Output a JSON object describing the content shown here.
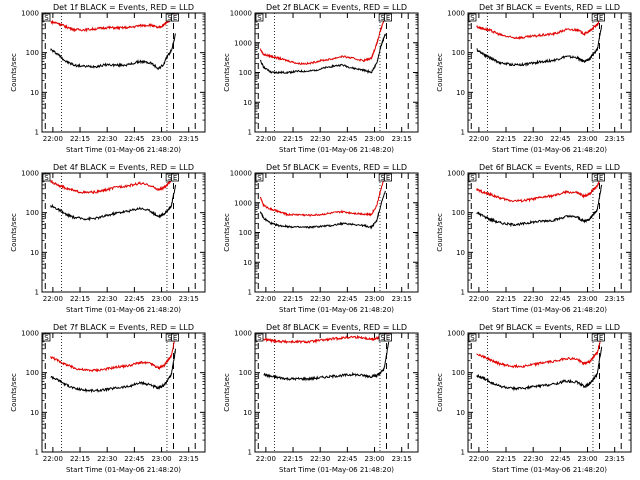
{
  "figure": {
    "legend_text": "BLACK = Events, RED = LLD",
    "xlabel": "Start Time (01-May-06 21:48:20)",
    "ylabel": "Counts/sec",
    "colors": {
      "events": "#000000",
      "lld": "#e00000",
      "axes": "#000000"
    }
  },
  "chart_data": [
    {
      "type": "line",
      "title": "Det 1f BLACK = Events, RED = LLD",
      "xlabel": "Start Time (01-May-06 21:48:20)",
      "ylabel": "Counts/sec",
      "xticks": [
        "22:00",
        "22:15",
        "22:30",
        "22:45",
        "23:00",
        "23:15"
      ],
      "yticks": [
        "1",
        "10",
        "100",
        "1000"
      ],
      "ylim": [
        1,
        1000
      ],
      "yscale": "log",
      "xlim": [
        21.9,
        23.4
      ],
      "x": [
        21.98,
        22.05,
        22.12,
        22.2,
        22.3,
        22.4,
        22.5,
        22.6,
        22.7,
        22.8,
        22.9,
        22.97,
        23.02,
        23.05,
        23.09,
        23.13
      ],
      "series": [
        {
          "name": "Events",
          "color": "#000000",
          "values": [
            120,
            90,
            60,
            48,
            45,
            45,
            50,
            48,
            50,
            60,
            55,
            40,
            50,
            80,
            110,
            300
          ]
        },
        {
          "name": "LLD",
          "color": "#e00000",
          "values": [
            600,
            550,
            450,
            380,
            380,
            400,
            430,
            420,
            430,
            480,
            500,
            420,
            500,
            600,
            700,
            900
          ]
        }
      ],
      "vlines": {
        "dotted": [
          22.08,
          23.05
        ],
        "dashed": [
          21.93,
          23.11,
          23.31
        ]
      },
      "markers": [
        "S",
        "S",
        "E"
      ]
    },
    {
      "type": "line",
      "title": "Det 2f BLACK = Events, RED = LLD",
      "xlabel": "Start Time (01-May-06 21:48:20)",
      "ylabel": "Counts/sec",
      "xticks": [
        "22:00",
        "22:15",
        "22:30",
        "22:45",
        "23:00",
        "23:15"
      ],
      "yticks": [
        "1",
        "10",
        "100",
        "1000",
        "10000"
      ],
      "ylim": [
        1,
        10000
      ],
      "yscale": "log",
      "xlim": [
        21.9,
        23.4
      ],
      "x": [
        21.95,
        21.98,
        22.05,
        22.12,
        22.2,
        22.3,
        22.4,
        22.5,
        22.6,
        22.7,
        22.8,
        22.9,
        22.97,
        23.02,
        23.06,
        23.1
      ],
      "series": [
        {
          "name": "Events",
          "color": "#000000",
          "values": [
            250,
            150,
            100,
            100,
            100,
            110,
            110,
            130,
            160,
            180,
            140,
            120,
            100,
            200,
            800,
            2000
          ]
        },
        {
          "name": "LLD",
          "color": "#e00000",
          "values": [
            600,
            400,
            350,
            300,
            250,
            200,
            200,
            250,
            280,
            350,
            300,
            250,
            300,
            900,
            3000,
            8000
          ]
        }
      ],
      "vlines": {
        "dotted": [
          22.08,
          23.05
        ],
        "dashed": [
          21.93,
          23.11,
          23.31
        ]
      },
      "markers": [
        "S",
        "S",
        "E"
      ]
    },
    {
      "type": "line",
      "title": "Det 3f BLACK = Events, RED = LLD",
      "xlabel": "Start Time (01-May-06 21:48:20)",
      "ylabel": "Counts/sec",
      "xticks": [
        "22:00",
        "22:15",
        "22:30",
        "22:45",
        "23:00",
        "23:15"
      ],
      "yticks": [
        "1",
        "10",
        "100",
        "1000"
      ],
      "ylim": [
        1,
        1000
      ],
      "yscale": "log",
      "xlim": [
        21.9,
        23.4
      ],
      "x": [
        21.98,
        22.05,
        22.12,
        22.2,
        22.3,
        22.4,
        22.5,
        22.6,
        22.7,
        22.8,
        22.9,
        22.97,
        23.02,
        23.05,
        23.09,
        23.13
      ],
      "series": [
        {
          "name": "Events",
          "color": "#000000",
          "values": [
            120,
            90,
            70,
            55,
            50,
            50,
            55,
            60,
            65,
            80,
            75,
            60,
            70,
            90,
            120,
            500
          ]
        },
        {
          "name": "LLD",
          "color": "#e00000",
          "values": [
            450,
            400,
            350,
            280,
            240,
            240,
            260,
            280,
            300,
            380,
            380,
            300,
            350,
            420,
            500,
            900
          ]
        }
      ],
      "vlines": {
        "dotted": [
          22.08,
          23.05
        ],
        "dashed": [
          21.93,
          23.11,
          23.31
        ]
      },
      "markers": [
        "S",
        "S",
        "E"
      ]
    },
    {
      "type": "line",
      "title": "Det 4f BLACK = Events, RED = LLD",
      "xlabel": "Start Time (01-May-06 21:48:20)",
      "ylabel": "Counts/sec",
      "xticks": [
        "22:00",
        "22:15",
        "22:30",
        "22:45",
        "23:00",
        "23:15"
      ],
      "yticks": [
        "1",
        "10",
        "100",
        "1000"
      ],
      "ylim": [
        1,
        1000
      ],
      "yscale": "log",
      "xlim": [
        21.9,
        23.4
      ],
      "x": [
        21.98,
        22.05,
        22.12,
        22.2,
        22.3,
        22.4,
        22.5,
        22.6,
        22.7,
        22.8,
        22.9,
        22.97,
        23.02,
        23.05,
        23.09,
        23.13
      ],
      "series": [
        {
          "name": "Events",
          "color": "#000000",
          "values": [
            150,
            120,
            90,
            75,
            70,
            72,
            85,
            100,
            110,
            130,
            110,
            80,
            90,
            110,
            150,
            500
          ]
        },
        {
          "name": "LLD",
          "color": "#e00000",
          "values": [
            600,
            500,
            420,
            350,
            320,
            330,
            380,
            450,
            480,
            550,
            480,
            380,
            420,
            500,
            650,
            900
          ]
        }
      ],
      "vlines": {
        "dotted": [
          22.08,
          23.05
        ],
        "dashed": [
          21.93,
          23.11,
          23.31
        ]
      },
      "markers": [
        "S",
        "S",
        "E"
      ]
    },
    {
      "type": "line",
      "title": "Det 5f BLACK = Events, RED = LLD",
      "xlabel": "Start Time (01-May-06 21:48:20)",
      "ylabel": "Counts/sec",
      "xticks": [
        "22:00",
        "22:15",
        "22:30",
        "22:45",
        "23:00",
        "23:15"
      ],
      "yticks": [
        "1",
        "10",
        "100",
        "1000",
        "10000"
      ],
      "ylim": [
        1,
        10000
      ],
      "yscale": "log",
      "xlim": [
        21.9,
        23.4
      ],
      "x": [
        21.95,
        21.98,
        22.05,
        22.12,
        22.2,
        22.3,
        22.4,
        22.5,
        22.6,
        22.7,
        22.8,
        22.9,
        22.97,
        23.02,
        23.06,
        23.1
      ],
      "series": [
        {
          "name": "Events",
          "color": "#000000",
          "values": [
            500,
            300,
            200,
            170,
            160,
            150,
            150,
            160,
            170,
            200,
            190,
            170,
            150,
            250,
            900,
            2500
          ]
        },
        {
          "name": "LLD",
          "color": "#e00000",
          "values": [
            1500,
            800,
            600,
            500,
            400,
            400,
            380,
            400,
            450,
            500,
            450,
            420,
            400,
            800,
            3000,
            8000
          ]
        }
      ],
      "vlines": {
        "dotted": [
          22.08,
          23.05
        ],
        "dashed": [
          21.93,
          23.11,
          23.31
        ]
      },
      "markers": [
        "S",
        "S",
        "E"
      ]
    },
    {
      "type": "line",
      "title": "Det 6f BLACK = Events, RED = LLD",
      "xlabel": "Start Time (01-May-06 21:48:20)",
      "ylabel": "Counts/sec",
      "xticks": [
        "22:00",
        "22:15",
        "22:30",
        "22:45",
        "23:00",
        "23:15"
      ],
      "yticks": [
        "1",
        "10",
        "100",
        "1000"
      ],
      "ylim": [
        1,
        1000
      ],
      "yscale": "log",
      "xlim": [
        21.9,
        23.4
      ],
      "x": [
        21.98,
        22.05,
        22.12,
        22.2,
        22.3,
        22.4,
        22.5,
        22.6,
        22.7,
        22.8,
        22.9,
        22.97,
        23.02,
        23.05,
        23.09,
        23.13
      ],
      "series": [
        {
          "name": "Events",
          "color": "#000000",
          "values": [
            100,
            80,
            65,
            55,
            50,
            52,
            58,
            62,
            65,
            80,
            78,
            60,
            70,
            90,
            120,
            500
          ]
        },
        {
          "name": "LLD",
          "color": "#e00000",
          "values": [
            380,
            320,
            280,
            230,
            200,
            200,
            220,
            250,
            270,
            330,
            320,
            260,
            300,
            380,
            480,
            900
          ]
        }
      ],
      "vlines": {
        "dotted": [
          22.08,
          23.05
        ],
        "dashed": [
          21.93,
          23.11,
          23.31
        ]
      },
      "markers": [
        "S",
        "S",
        "E"
      ]
    },
    {
      "type": "line",
      "title": "Det 7f BLACK = Events, RED = LLD",
      "xlabel": "Start Time (01-May-06 21:48:20)",
      "ylabel": "Counts/sec",
      "xticks": [
        "22:00",
        "22:15",
        "22:30",
        "22:45",
        "23:00",
        "23:15"
      ],
      "yticks": [
        "1",
        "10",
        "100",
        "1000"
      ],
      "ylim": [
        1,
        1000
      ],
      "yscale": "log",
      "xlim": [
        21.9,
        23.4
      ],
      "x": [
        21.98,
        22.05,
        22.12,
        22.2,
        22.3,
        22.4,
        22.5,
        22.6,
        22.7,
        22.8,
        22.9,
        22.97,
        23.02,
        23.05,
        23.09,
        23.13
      ],
      "series": [
        {
          "name": "Events",
          "color": "#000000",
          "values": [
            80,
            65,
            50,
            40,
            36,
            35,
            38,
            42,
            45,
            55,
            50,
            40,
            48,
            60,
            90,
            400
          ]
        },
        {
          "name": "LLD",
          "color": "#e00000",
          "values": [
            250,
            200,
            160,
            130,
            115,
            115,
            125,
            140,
            150,
            180,
            170,
            130,
            150,
            190,
            260,
            900
          ]
        }
      ],
      "vlines": {
        "dotted": [
          22.08,
          23.05
        ],
        "dashed": [
          21.93,
          23.11,
          23.31
        ]
      },
      "markers": [
        "S",
        "S",
        "E"
      ]
    },
    {
      "type": "line",
      "title": "Det 8f BLACK = Events, RED = LLD",
      "xlabel": "Start Time (01-May-06 21:48:20)",
      "ylabel": "Counts/sec",
      "xticks": [
        "22:00",
        "22:15",
        "22:30",
        "22:45",
        "23:00",
        "23:15"
      ],
      "yticks": [
        "1",
        "10",
        "100",
        "1000"
      ],
      "ylim": [
        1,
        1000
      ],
      "yscale": "log",
      "xlim": [
        21.9,
        23.4
      ],
      "x": [
        21.98,
        22.05,
        22.12,
        22.2,
        22.3,
        22.4,
        22.5,
        22.6,
        22.7,
        22.8,
        22.9,
        22.97,
        23.02,
        23.05,
        23.09,
        23.13
      ],
      "series": [
        {
          "name": "Events",
          "color": "#000000",
          "values": [
            90,
            80,
            75,
            70,
            70,
            70,
            75,
            80,
            85,
            90,
            85,
            80,
            85,
            95,
            130,
            600
          ]
        },
        {
          "name": "LLD",
          "color": "#e00000",
          "values": [
            700,
            650,
            620,
            600,
            600,
            600,
            650,
            700,
            750,
            800,
            760,
            700,
            720,
            780,
            850,
            950
          ]
        }
      ],
      "vlines": {
        "dotted": [
          22.08,
          23.05
        ],
        "dashed": [
          21.93,
          23.11,
          23.31
        ]
      },
      "markers": [
        "S",
        "S",
        "E"
      ]
    },
    {
      "type": "line",
      "title": "Det 9f BLACK = Events, RED = LLD",
      "xlabel": "Start Time (01-May-06 21:48:20)",
      "ylabel": "Counts/sec",
      "xticks": [
        "22:00",
        "22:15",
        "22:30",
        "22:45",
        "23:00",
        "23:15"
      ],
      "yticks": [
        "1",
        "10",
        "100",
        "1000"
      ],
      "ylim": [
        1,
        1000
      ],
      "yscale": "log",
      "xlim": [
        21.9,
        23.4
      ],
      "x": [
        21.98,
        22.05,
        22.12,
        22.2,
        22.3,
        22.4,
        22.5,
        22.6,
        22.7,
        22.8,
        22.9,
        22.97,
        23.02,
        23.05,
        23.09,
        23.13
      ],
      "series": [
        {
          "name": "Events",
          "color": "#000000",
          "values": [
            85,
            70,
            55,
            45,
            40,
            40,
            44,
            48,
            52,
            62,
            58,
            45,
            52,
            65,
            95,
            450
          ]
        },
        {
          "name": "LLD",
          "color": "#e00000",
          "values": [
            300,
            250,
            200,
            165,
            145,
            145,
            160,
            180,
            195,
            230,
            220,
            170,
            190,
            240,
            320,
            900
          ]
        }
      ],
      "vlines": {
        "dotted": [
          22.08,
          23.05
        ],
        "dashed": [
          21.93,
          23.11,
          23.31
        ]
      },
      "markers": [
        "S",
        "S",
        "E"
      ]
    }
  ]
}
